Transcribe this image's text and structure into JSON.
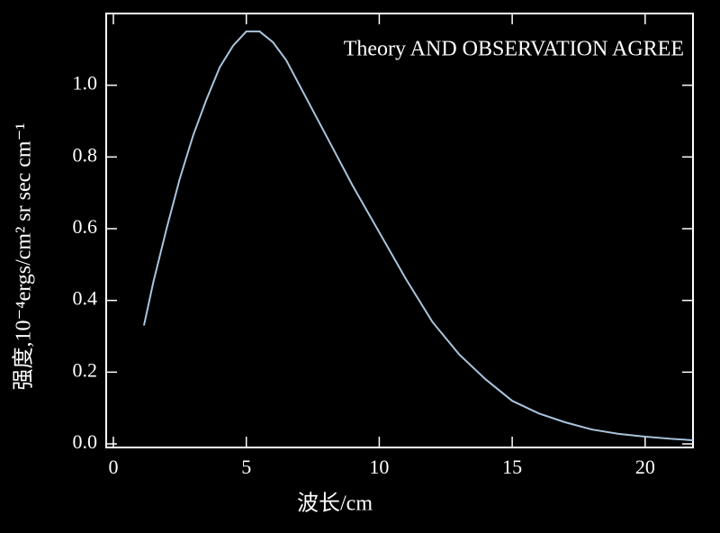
{
  "chart_data": {
    "type": "line",
    "title": "Theory AND OBSERVATION AGREE",
    "xlabel": "波长/cm",
    "ylabel": "强度,10⁻⁴ergs/cm² sr sec cm⁻¹",
    "x": [
      1.15,
      1.5,
      2,
      2.5,
      3,
      3.5,
      4,
      4.5,
      5,
      5.5,
      6,
      6.5,
      7,
      8,
      9,
      10,
      11,
      12,
      13,
      14,
      15,
      16,
      17,
      18,
      19,
      20,
      21,
      21.8
    ],
    "series": [
      {
        "name": "Theory",
        "color": "#a9c4dc",
        "values": [
          0.33,
          0.45,
          0.6,
          0.74,
          0.86,
          0.96,
          1.05,
          1.11,
          1.15,
          1.15,
          1.12,
          1.07,
          1.0,
          0.86,
          0.72,
          0.59,
          0.46,
          0.34,
          0.25,
          0.18,
          0.12,
          0.085,
          0.06,
          0.04,
          0.028,
          0.02,
          0.014,
          0.01
        ]
      }
    ],
    "xlim": [
      -0.27,
      21.8
    ],
    "ylim": [
      -0.01,
      1.2
    ],
    "xticks": [
      0,
      5,
      10,
      15,
      20
    ],
    "yticks": [
      {
        "value": 0,
        "label": "0.0"
      },
      {
        "value": 0.2,
        "label": "0.2"
      },
      {
        "value": 0.4,
        "label": "0.4"
      },
      {
        "value": 0.6,
        "label": "0.6"
      },
      {
        "value": 0.8,
        "label": "0.8"
      },
      {
        "value": 1,
        "label": "1.0"
      }
    ]
  }
}
